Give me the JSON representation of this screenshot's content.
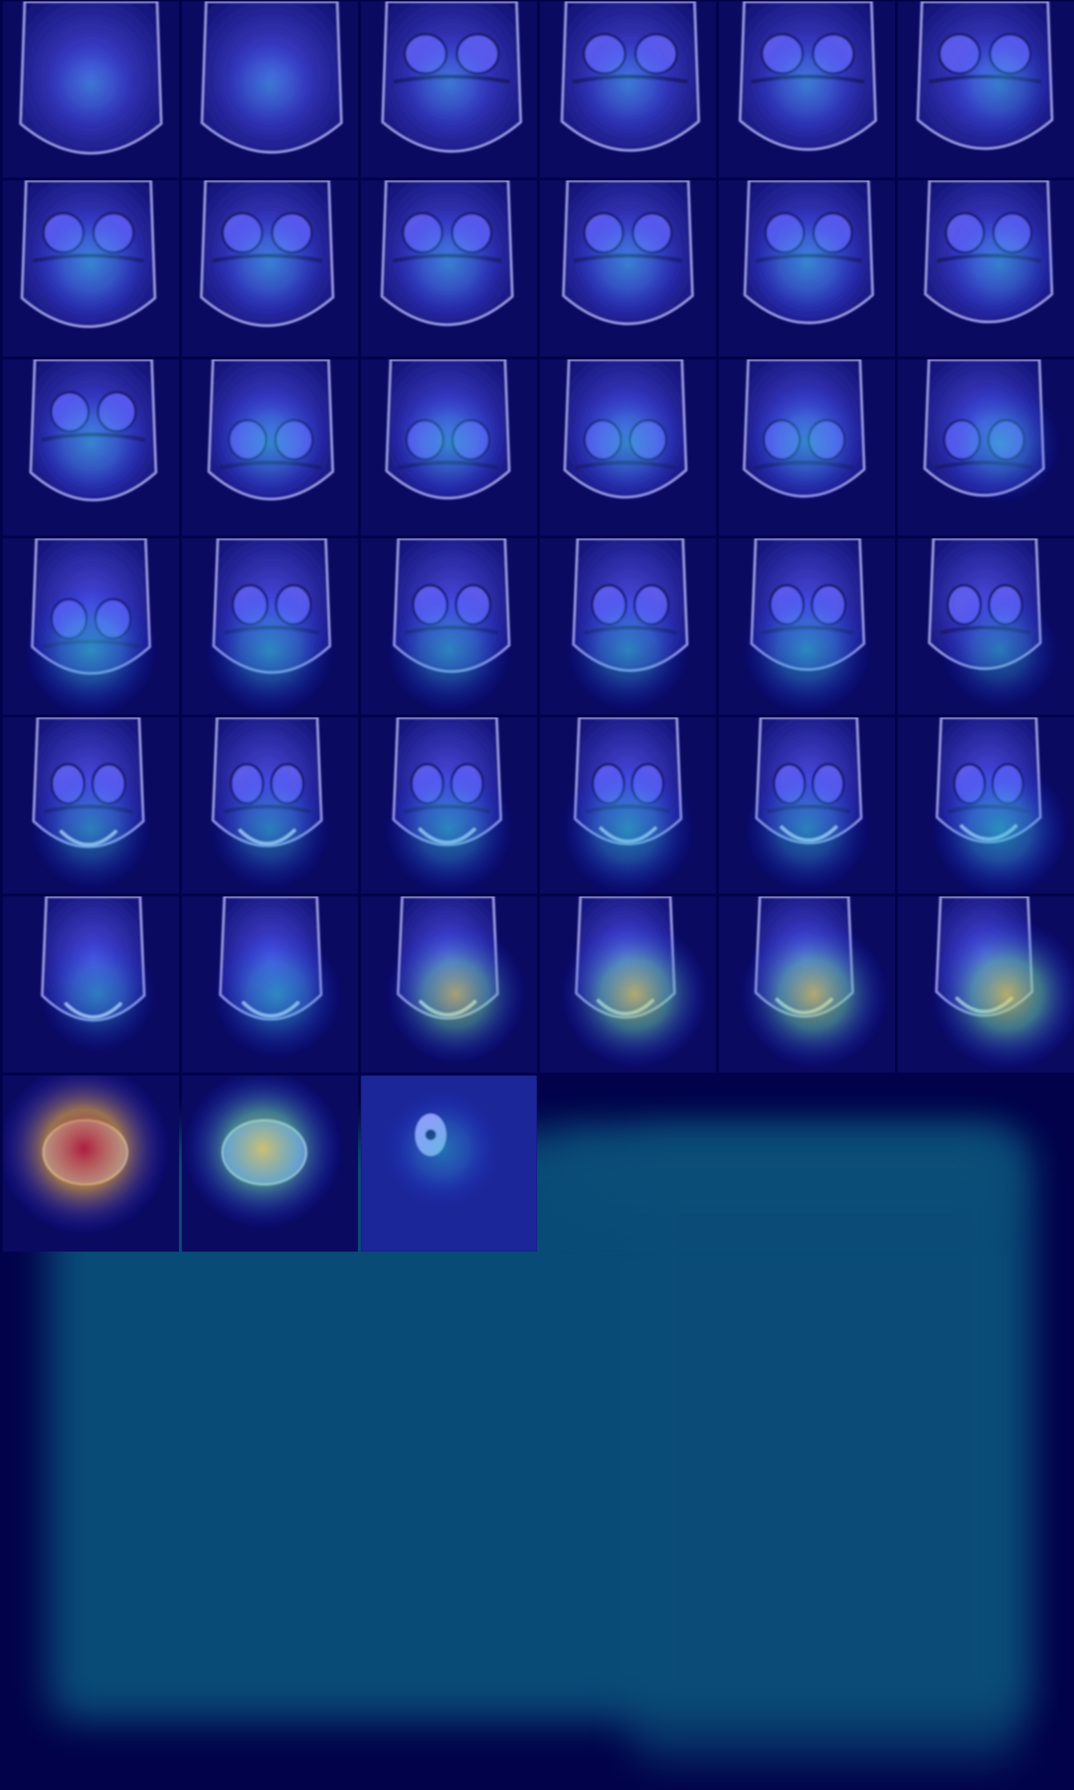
{
  "image": {
    "alt": "",
    "grid": {
      "columns": 6,
      "rows": 7,
      "filled_slices": 39
    },
    "colors": {
      "background_dark_navy": "#02024a",
      "overlay_blue": "#1a1aff",
      "overlay_cyan": "#2fd7c8",
      "overlay_yellow": "#f5e64a",
      "overlay_red": "#c81a1a",
      "empty_teal": "#0a4f7a"
    },
    "heat_levels": [
      0.05,
      0.08,
      0.1,
      0.12,
      0.15,
      0.2,
      0.28,
      0.22,
      0.22,
      0.22,
      0.3,
      0.25,
      0.3,
      0.3,
      0.3,
      0.3,
      0.32,
      0.35,
      0.5,
      0.45,
      0.4,
      0.38,
      0.45,
      0.3,
      0.35,
      0.35,
      0.45,
      0.5,
      0.4,
      0.55,
      0.3,
      0.45,
      0.6,
      0.7,
      0.7,
      0.75,
      1.0,
      0.85,
      0.25
    ]
  }
}
